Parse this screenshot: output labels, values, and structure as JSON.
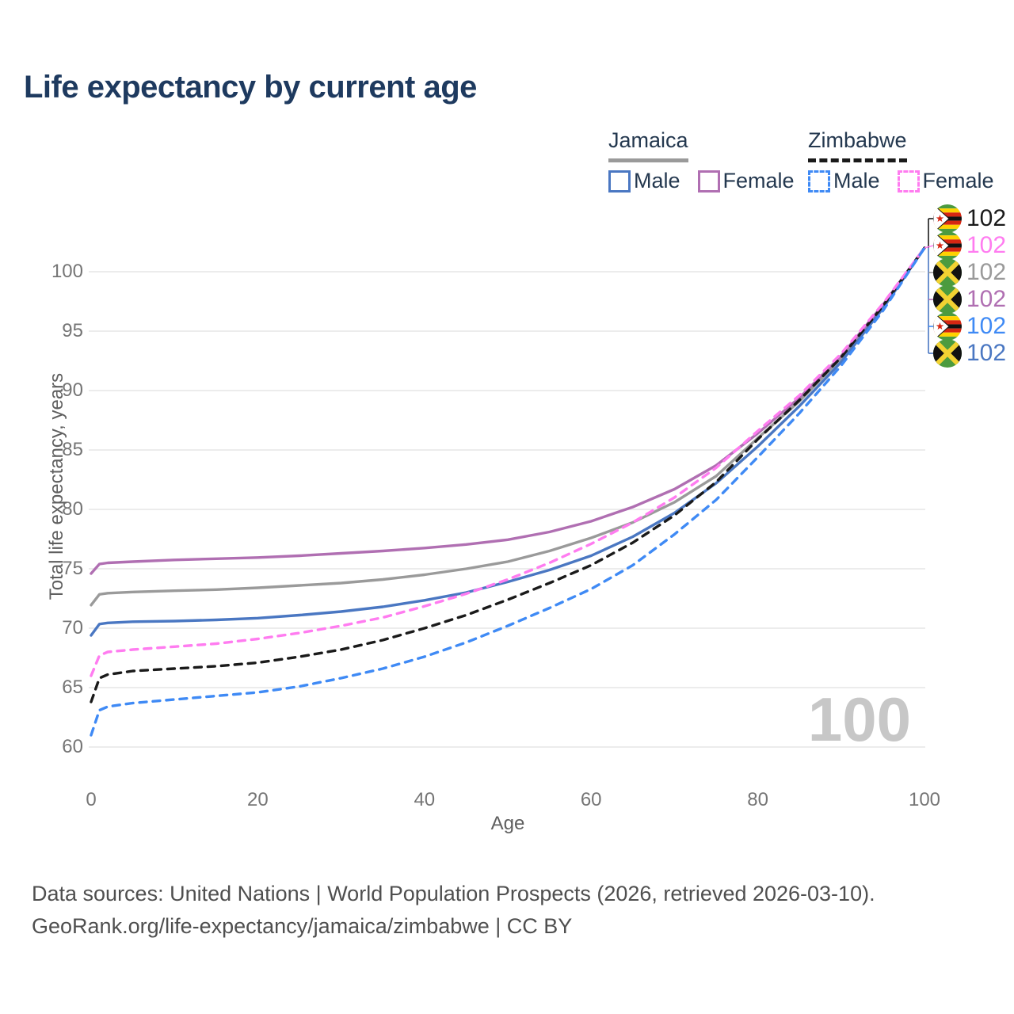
{
  "title": "Life expectancy by current age",
  "legend": {
    "groups": [
      {
        "label": "Jamaica",
        "style": "solid",
        "items": [
          {
            "label": "Male",
            "series": "jamaica_male"
          },
          {
            "label": "Female",
            "series": "jamaica_female"
          }
        ]
      },
      {
        "label": "Zimbabwe",
        "style": "dashed",
        "items": [
          {
            "label": "Male",
            "series": "zimbabwe_male"
          },
          {
            "label": "Female",
            "series": "zimbabwe_female"
          }
        ]
      }
    ]
  },
  "watermark": "100",
  "footer": {
    "line1": "Data sources: United Nations | World Population Prospects (2026, retrieved 2026-03-10).",
    "line2": "GeoRank.org/life-expectancy/jamaica/zimbabwe | CC BY"
  },
  "colors": {
    "title": "#1e3a5f",
    "tick": "#757575",
    "gridline": "#ececec",
    "jamaica_male": "#4a77c2",
    "jamaica_female": "#b06fb2",
    "jamaica_both": "#9a9a9a",
    "zimbabwe_male": "#3f8af5",
    "zimbabwe_female": "#ff7cf0",
    "zimbabwe_both": "#1a1a1a"
  },
  "chart_data": {
    "type": "line",
    "title": "Life expectancy by current age",
    "xlabel": "Age",
    "ylabel": "Total life expectancy, years",
    "xlim": [
      0,
      100
    ],
    "ylim": [
      60,
      102.5
    ],
    "xticks": [
      0,
      20,
      40,
      60,
      80,
      100
    ],
    "yticks": [
      60,
      65,
      70,
      75,
      80,
      85,
      90,
      95,
      100
    ],
    "grid": "horizontal-only",
    "legend_position": "top-right",
    "series": [
      {
        "name": "Jamaica",
        "key": "jamaica_both",
        "sex": "both",
        "color": "#9a9a9a",
        "dash": "solid",
        "flag": "jamaica",
        "end_value": 102,
        "points": [
          [
            0,
            71.95
          ],
          [
            1,
            72.85
          ],
          [
            2,
            72.95
          ],
          [
            5,
            73.05
          ],
          [
            10,
            73.15
          ],
          [
            15,
            73.25
          ],
          [
            20,
            73.4
          ],
          [
            25,
            73.6
          ],
          [
            30,
            73.8
          ],
          [
            35,
            74.1
          ],
          [
            40,
            74.5
          ],
          [
            45,
            75.0
          ],
          [
            50,
            75.6
          ],
          [
            55,
            76.5
          ],
          [
            60,
            77.6
          ],
          [
            65,
            78.9
          ],
          [
            70,
            80.6
          ],
          [
            75,
            82.8
          ],
          [
            80,
            86.0
          ],
          [
            85,
            89.1
          ],
          [
            90,
            92.7
          ],
          [
            95,
            97.1
          ],
          [
            100,
            102
          ]
        ]
      },
      {
        "name": "Jamaica Female",
        "key": "jamaica_female",
        "sex": "female",
        "color": "#b06fb2",
        "dash": "solid",
        "flag": "jamaica",
        "end_value": 102,
        "points": [
          [
            0,
            74.6
          ],
          [
            1,
            75.4
          ],
          [
            2,
            75.5
          ],
          [
            5,
            75.6
          ],
          [
            10,
            75.75
          ],
          [
            15,
            75.85
          ],
          [
            20,
            75.95
          ],
          [
            25,
            76.1
          ],
          [
            30,
            76.3
          ],
          [
            35,
            76.5
          ],
          [
            40,
            76.75
          ],
          [
            45,
            77.05
          ],
          [
            50,
            77.45
          ],
          [
            55,
            78.1
          ],
          [
            60,
            79.0
          ],
          [
            65,
            80.2
          ],
          [
            70,
            81.7
          ],
          [
            75,
            83.7
          ],
          [
            80,
            86.4
          ],
          [
            85,
            89.4
          ],
          [
            90,
            92.9
          ],
          [
            95,
            97.2
          ],
          [
            100,
            102
          ]
        ]
      },
      {
        "name": "Jamaica Male",
        "key": "jamaica_male",
        "sex": "male",
        "color": "#4a77c2",
        "dash": "solid",
        "flag": "jamaica",
        "end_value": 102,
        "points": [
          [
            0,
            69.4
          ],
          [
            1,
            70.35
          ],
          [
            2,
            70.45
          ],
          [
            5,
            70.55
          ],
          [
            10,
            70.6
          ],
          [
            15,
            70.7
          ],
          [
            20,
            70.85
          ],
          [
            25,
            71.1
          ],
          [
            30,
            71.4
          ],
          [
            35,
            71.8
          ],
          [
            40,
            72.35
          ],
          [
            45,
            73.0
          ],
          [
            50,
            73.9
          ],
          [
            55,
            74.9
          ],
          [
            60,
            76.1
          ],
          [
            65,
            77.7
          ],
          [
            70,
            79.7
          ],
          [
            75,
            82.2
          ],
          [
            80,
            85.3
          ],
          [
            85,
            88.7
          ],
          [
            90,
            92.4
          ],
          [
            95,
            96.9
          ],
          [
            100,
            102
          ]
        ]
      },
      {
        "name": "Zimbabwe",
        "key": "zimbabwe_both",
        "sex": "both",
        "color": "#1a1a1a",
        "dash": "dashed",
        "flag": "zimbabwe",
        "end_value": 102,
        "points": [
          [
            0,
            63.8
          ],
          [
            1,
            65.8
          ],
          [
            2,
            66.1
          ],
          [
            5,
            66.4
          ],
          [
            10,
            66.6
          ],
          [
            15,
            66.8
          ],
          [
            20,
            67.1
          ],
          [
            25,
            67.6
          ],
          [
            30,
            68.2
          ],
          [
            35,
            69.0
          ],
          [
            40,
            70.0
          ],
          [
            45,
            71.1
          ],
          [
            50,
            72.4
          ],
          [
            55,
            73.8
          ],
          [
            60,
            75.3
          ],
          [
            65,
            77.2
          ],
          [
            70,
            79.5
          ],
          [
            75,
            82.3
          ],
          [
            80,
            85.9
          ],
          [
            85,
            89.2
          ],
          [
            90,
            92.8
          ],
          [
            95,
            97.1
          ],
          [
            100,
            102
          ]
        ]
      },
      {
        "name": "Zimbabwe Female",
        "key": "zimbabwe_female",
        "sex": "female",
        "color": "#ff7cf0",
        "dash": "dashed",
        "flag": "zimbabwe",
        "end_value": 102,
        "points": [
          [
            0,
            66.0
          ],
          [
            1,
            67.7
          ],
          [
            2,
            68.0
          ],
          [
            5,
            68.2
          ],
          [
            10,
            68.45
          ],
          [
            15,
            68.7
          ],
          [
            20,
            69.1
          ],
          [
            25,
            69.6
          ],
          [
            30,
            70.2
          ],
          [
            35,
            70.9
          ],
          [
            40,
            71.85
          ],
          [
            45,
            72.9
          ],
          [
            50,
            74.1
          ],
          [
            55,
            75.5
          ],
          [
            60,
            77.1
          ],
          [
            65,
            78.9
          ],
          [
            70,
            81.0
          ],
          [
            75,
            83.5
          ],
          [
            80,
            86.6
          ],
          [
            85,
            89.6
          ],
          [
            90,
            93.1
          ],
          [
            95,
            97.3
          ],
          [
            100,
            102
          ]
        ]
      },
      {
        "name": "Zimbabwe Male",
        "key": "zimbabwe_male",
        "sex": "male",
        "color": "#3f8af5",
        "dash": "dashed",
        "flag": "zimbabwe",
        "end_value": 102,
        "points": [
          [
            0,
            61.0
          ],
          [
            1,
            63.1
          ],
          [
            2,
            63.4
          ],
          [
            5,
            63.7
          ],
          [
            10,
            64.0
          ],
          [
            15,
            64.3
          ],
          [
            20,
            64.6
          ],
          [
            25,
            65.1
          ],
          [
            30,
            65.8
          ],
          [
            35,
            66.6
          ],
          [
            40,
            67.6
          ],
          [
            45,
            68.8
          ],
          [
            50,
            70.2
          ],
          [
            55,
            71.7
          ],
          [
            60,
            73.3
          ],
          [
            65,
            75.3
          ],
          [
            70,
            77.9
          ],
          [
            75,
            80.8
          ],
          [
            80,
            84.4
          ],
          [
            85,
            88.1
          ],
          [
            90,
            92.1
          ],
          [
            95,
            96.7
          ],
          [
            100,
            102
          ]
        ]
      }
    ],
    "end_labels": [
      {
        "flag": "zimbabwe",
        "value": "102",
        "series": "zimbabwe_both"
      },
      {
        "flag": "zimbabwe",
        "value": "102",
        "series": "zimbabwe_female"
      },
      {
        "flag": "jamaica",
        "value": "102",
        "series": "jamaica_both"
      },
      {
        "flag": "jamaica",
        "value": "102",
        "series": "jamaica_female"
      },
      {
        "flag": "zimbabwe",
        "value": "102",
        "series": "zimbabwe_male"
      },
      {
        "flag": "jamaica",
        "value": "102",
        "series": "jamaica_male"
      }
    ]
  }
}
